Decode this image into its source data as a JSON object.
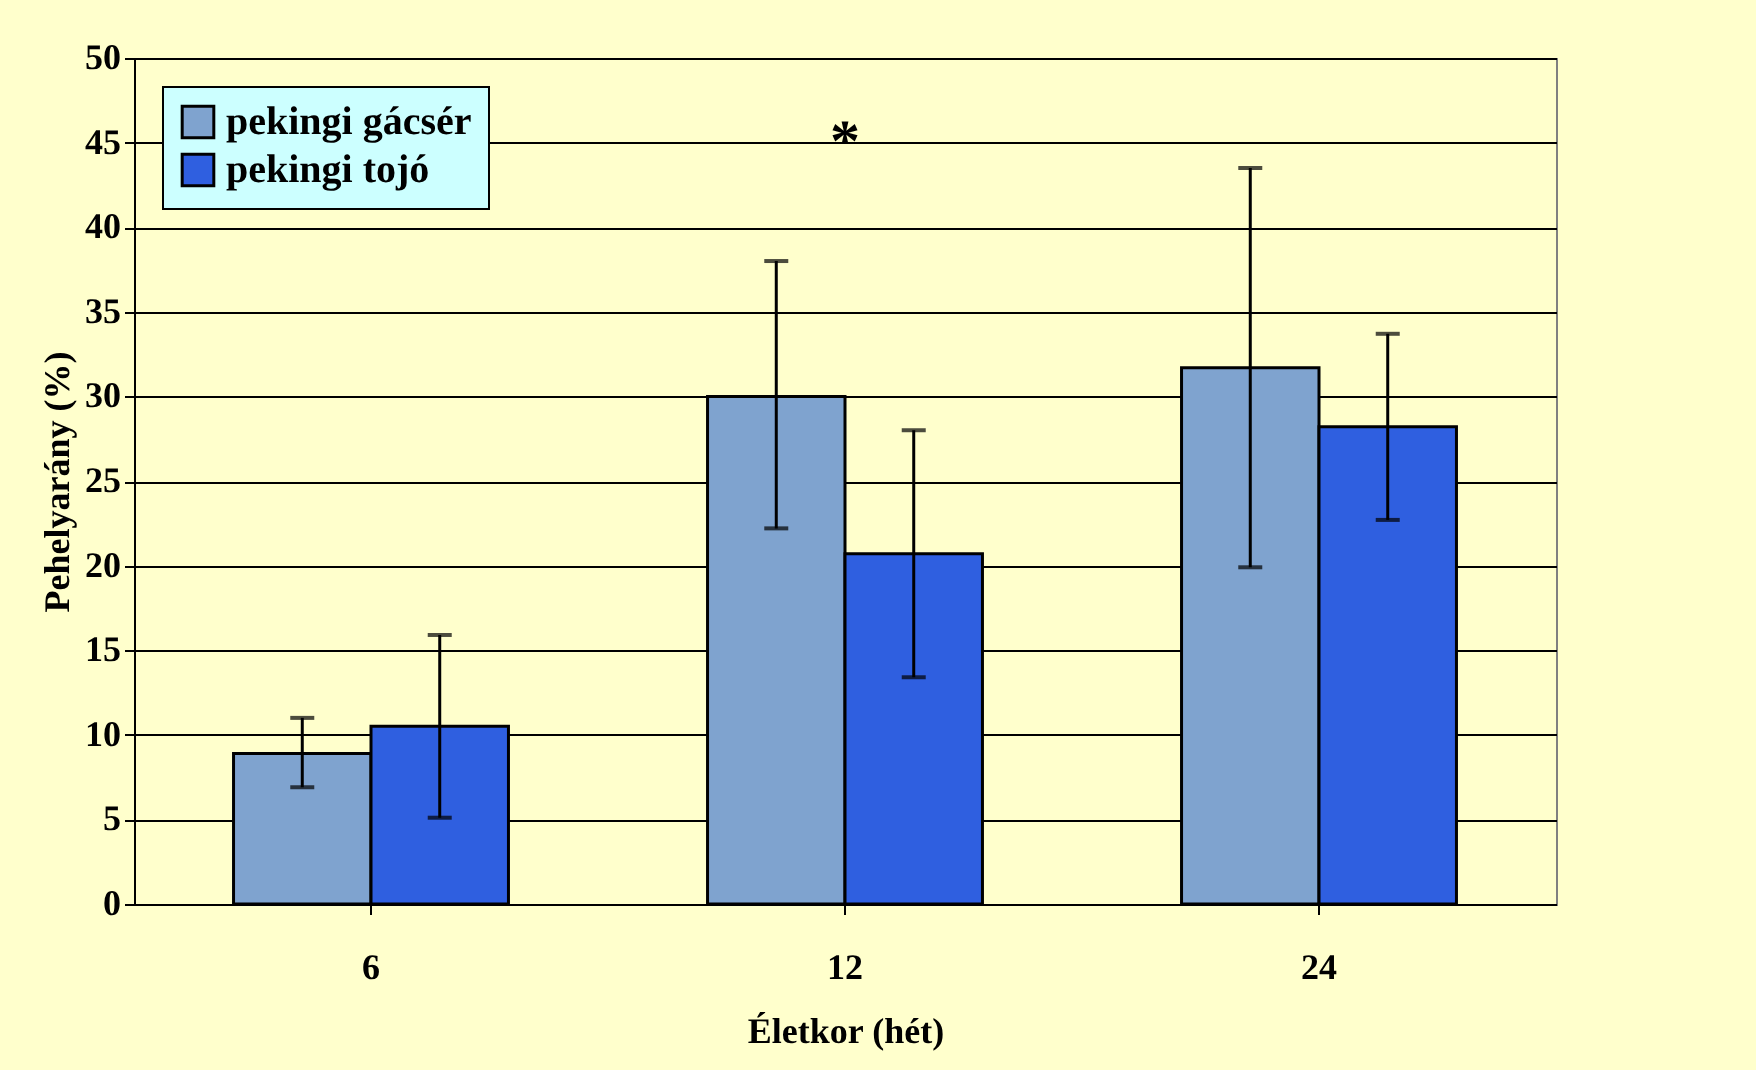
{
  "chart_data": {
    "type": "bar",
    "xlabel": "Életkor (hét)",
    "ylabel": "Pehelyarány (%)",
    "categories": [
      "6",
      "12",
      "24"
    ],
    "series": [
      {
        "name": "pekingi gácsér",
        "color": "#7fa3cf",
        "values": [
          8.9,
          30.0,
          31.7
        ],
        "errors": [
          [
            6.9,
            11.0
          ],
          [
            22.2,
            38.0
          ],
          [
            19.9,
            43.5
          ]
        ]
      },
      {
        "name": "pekingi tojó",
        "color": "#2f5fe0",
        "values": [
          10.5,
          20.7,
          28.2
        ],
        "errors": [
          [
            5.1,
            15.9
          ],
          [
            13.4,
            28.0
          ],
          [
            22.7,
            33.7
          ]
        ]
      }
    ],
    "ylim": [
      0,
      50
    ],
    "yticks": [
      0,
      5,
      10,
      15,
      20,
      25,
      30,
      35,
      40,
      45,
      50
    ],
    "annotations": [
      "*"
    ],
    "grid": "y",
    "legend": "top left"
  }
}
